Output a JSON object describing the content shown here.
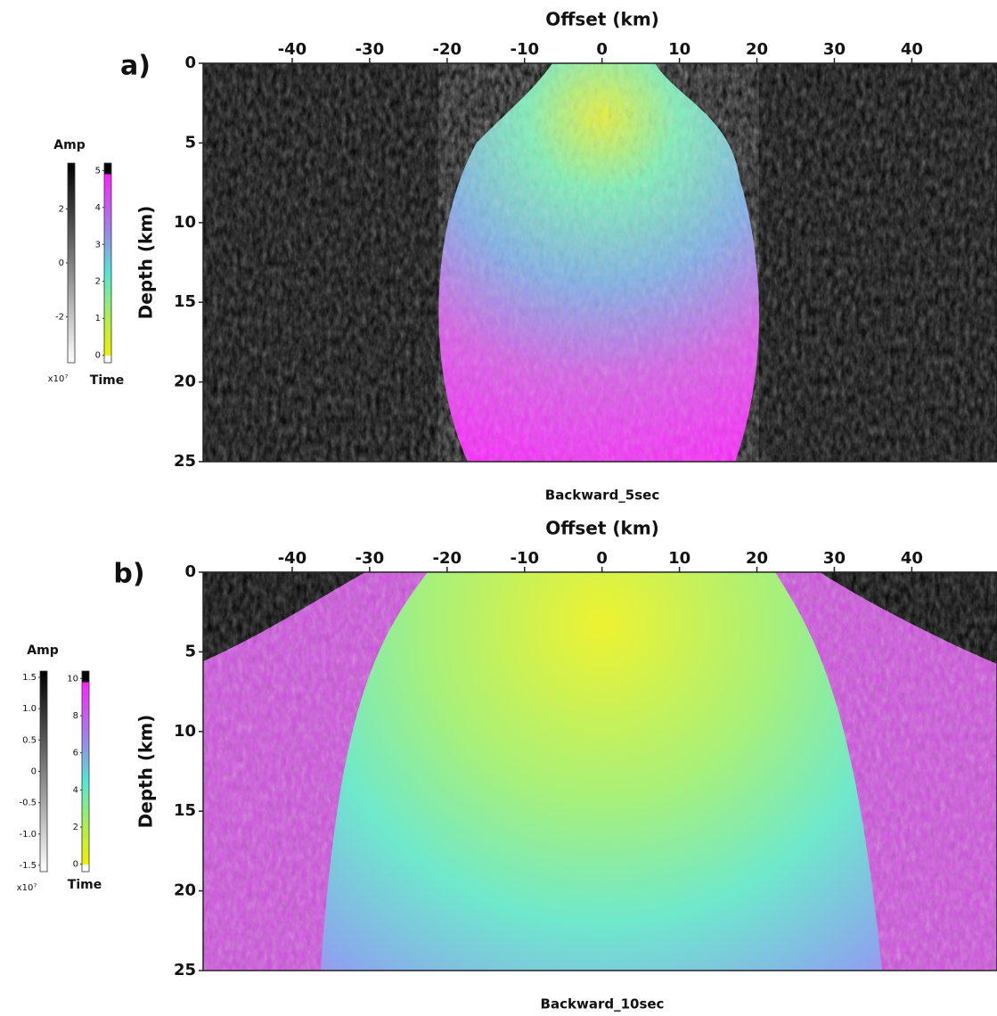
{
  "panels": [
    {
      "label": "a)",
      "x_label": "Offset (km)",
      "y_label": "Depth (km)",
      "xlim": [
        -51.5,
        51
      ],
      "xticks": [
        -40,
        -30,
        -20,
        -10,
        0,
        10,
        20,
        30,
        40
      ],
      "ylim": [
        0,
        25
      ],
      "yticks": [
        0,
        5,
        10,
        15,
        20,
        25
      ],
      "caption": "Backward_5sec",
      "colorbars": [
        {
          "title": "Amp",
          "lim": [
            -3.7,
            3.7
          ],
          "ticks": [
            2,
            0,
            -2
          ],
          "exponent": "x10⁷"
        },
        {
          "title": "Time",
          "lim": [
            -0.2,
            5.2
          ],
          "ticks": [
            0,
            1,
            2,
            3,
            4,
            5
          ]
        }
      ]
    },
    {
      "label": "b)",
      "x_label": "Offset (km)",
      "y_label": "Depth (km)",
      "xlim": [
        -51.5,
        51
      ],
      "xticks": [
        -40,
        -30,
        -20,
        -10,
        0,
        10,
        20,
        30,
        40
      ],
      "ylim": [
        0,
        25
      ],
      "yticks": [
        0,
        5,
        10,
        15,
        20,
        25
      ],
      "caption": "Backward_10sec",
      "colorbars": [
        {
          "title": "Amp",
          "lim": [
            -1.6,
            1.6
          ],
          "ticks": [
            1.5,
            {
              "value": 1,
              "label": "1.0"
            },
            0.5,
            0,
            -0.5,
            {
              "value": -1,
              "label": "-1.0"
            },
            -1.5
          ],
          "exponent": "x10⁷"
        },
        {
          "title": "Time",
          "lim": [
            -0.4,
            10.4
          ],
          "ticks": [
            0,
            2,
            4,
            6,
            8,
            10
          ]
        }
      ]
    }
  ]
}
